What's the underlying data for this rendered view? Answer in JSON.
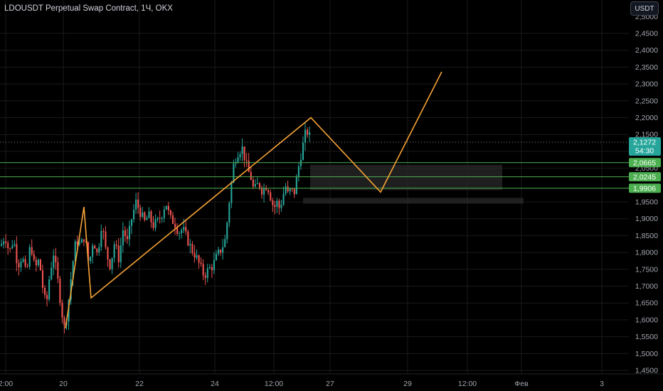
{
  "header": {
    "title": "LDOUSDT Perpetual Swap Contract, 1Ч, OKX",
    "currency_button": "USDT"
  },
  "colors": {
    "background": "#000000",
    "up": "#26a69a",
    "down": "#ef5350",
    "wave": "#f7a336",
    "level_line": "#4caf50",
    "level_tag": "#4caf50",
    "price_tag": "#26a69a",
    "zone": "#2a2a2a",
    "grid": "#1a1a1a",
    "axis_text": "#a3a6af"
  },
  "price_axis": {
    "ticks": [
      "2,4500",
      "2,4000",
      "2,3500",
      "2,3000",
      "2,2500",
      "2,2000",
      "2,1500",
      "2,1000",
      "2,0500",
      "1,9500",
      "1,9000",
      "1,8500",
      "1,8000",
      "1,7500",
      "1,7000",
      "1,6500",
      "1,6000",
      "1,5500",
      "1,5000",
      "1,4500"
    ],
    "top_partial": "2,5000"
  },
  "time_axis": {
    "labels": [
      "2:00",
      "20",
      "22",
      "24",
      "12:00",
      "27",
      "29",
      "12:00",
      "Фев",
      "3"
    ]
  },
  "current_price": {
    "value": "2,1272",
    "countdown": "54:30"
  },
  "levels": [
    "2,0665",
    "2,0245",
    "1,9906"
  ],
  "chart_data": {
    "type": "candlestick",
    "symbol": "LDOUSDT Perpetual Swap Contract",
    "interval": "1Ч",
    "exchange": "OKX",
    "ylim": [
      1.425,
      2.5
    ],
    "x_ticks": [
      "2:00",
      "20",
      "22",
      "24",
      "12:00",
      "27",
      "29",
      "12:00",
      "Фев",
      "3"
    ],
    "candle_anchors_price": [
      [
        0,
        1.82
      ],
      [
        6,
        1.85
      ],
      [
        12,
        1.8
      ],
      [
        18,
        1.84
      ],
      [
        24,
        1.76
      ],
      [
        30,
        1.79
      ],
      [
        36,
        1.73
      ],
      [
        42,
        1.83
      ],
      [
        48,
        1.75
      ],
      [
        54,
        1.78
      ],
      [
        60,
        1.68
      ],
      [
        64,
        1.64
      ],
      [
        68,
        1.72
      ],
      [
        74,
        1.8
      ],
      [
        80,
        1.72
      ],
      [
        86,
        1.62
      ],
      [
        90,
        1.57
      ],
      [
        95,
        1.65
      ],
      [
        100,
        1.75
      ],
      [
        106,
        1.84
      ],
      [
        112,
        1.82
      ],
      [
        118,
        1.85
      ],
      [
        124,
        1.76
      ],
      [
        130,
        1.84
      ],
      [
        136,
        1.79
      ],
      [
        142,
        1.89
      ],
      [
        148,
        1.8
      ],
      [
        154,
        1.76
      ],
      [
        160,
        1.83
      ],
      [
        166,
        1.78
      ],
      [
        172,
        1.87
      ],
      [
        178,
        1.83
      ],
      [
        184,
        1.9
      ],
      [
        190,
        1.95
      ],
      [
        196,
        1.92
      ],
      [
        202,
        1.89
      ],
      [
        208,
        1.91
      ],
      [
        214,
        1.88
      ],
      [
        220,
        1.89
      ],
      [
        226,
        1.91
      ],
      [
        232,
        1.95
      ],
      [
        238,
        1.9
      ],
      [
        244,
        1.89
      ],
      [
        250,
        1.86
      ],
      [
        256,
        1.87
      ],
      [
        262,
        1.84
      ],
      [
        268,
        1.81
      ],
      [
        274,
        1.79
      ],
      [
        280,
        1.76
      ],
      [
        286,
        1.73
      ],
      [
        292,
        1.75
      ],
      [
        298,
        1.76
      ],
      [
        304,
        1.79
      ],
      [
        310,
        1.81
      ],
      [
        316,
        1.84
      ],
      [
        320,
        1.93
      ],
      [
        324,
        2.0
      ],
      [
        328,
        2.07
      ],
      [
        334,
        2.1
      ],
      [
        340,
        2.11
      ],
      [
        344,
        2.07
      ],
      [
        348,
        2.04
      ],
      [
        352,
        2.02
      ],
      [
        356,
        1.98
      ],
      [
        360,
        2.0
      ],
      [
        364,
        2.0
      ],
      [
        368,
        1.98
      ],
      [
        372,
        2.0
      ],
      [
        376,
        1.99
      ],
      [
        380,
        1.96
      ],
      [
        384,
        1.93
      ],
      [
        388,
        1.95
      ],
      [
        392,
        1.93
      ],
      [
        396,
        1.96
      ],
      [
        400,
        2.0
      ],
      [
        404,
        1.97
      ],
      [
        408,
        1.99
      ],
      [
        412,
        1.97
      ],
      [
        416,
        2.02
      ],
      [
        420,
        2.07
      ],
      [
        424,
        2.11
      ],
      [
        428,
        2.15
      ],
      [
        432,
        2.16
      ],
      [
        436,
        2.13
      ]
    ],
    "wave_path_price": [
      [
        92,
        1.575
      ],
      [
        118,
        1.935
      ],
      [
        128,
        1.665
      ],
      [
        437,
        2.2
      ],
      [
        535,
        1.979
      ],
      [
        621,
        2.336
      ]
    ],
    "horizontal_levels": [
      2.0665,
      2.0245,
      1.9906
    ],
    "zones_price": [
      {
        "top": 2.06,
        "bottom": 1.985
      },
      {
        "top": 1.962,
        "bottom": 1.945
      }
    ],
    "last_price": 2.1272
  }
}
